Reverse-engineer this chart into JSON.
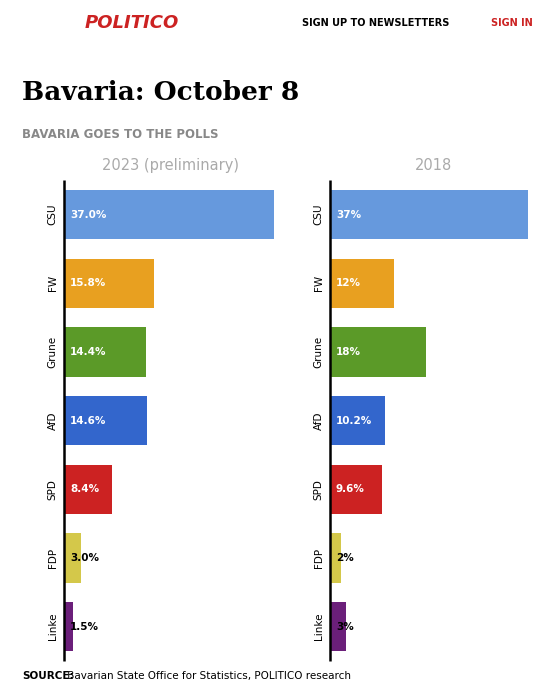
{
  "title": "Bavaria: October 8",
  "subtitle": "BAVARIA GOES TO THE POLLS",
  "col1_title": "2023 (preliminary)",
  "col2_title": "2018",
  "parties": [
    "CSU",
    "FW",
    "Grune",
    "AfD",
    "SPD",
    "FDP",
    "Linke"
  ],
  "values_2023": [
    37.0,
    15.8,
    14.4,
    14.6,
    8.4,
    3.0,
    1.5
  ],
  "labels_2023": [
    "37.0%",
    "15.8%",
    "14.4%",
    "14.6%",
    "8.4%",
    "3.0%",
    "1.5%"
  ],
  "values_2018": [
    37.0,
    12.0,
    18.0,
    10.2,
    9.6,
    2.0,
    3.0
  ],
  "labels_2018": [
    "37%",
    "12%",
    "18%",
    "10.2%",
    "9.6%",
    "2%",
    "3%"
  ],
  "colors": [
    "#6699DD",
    "#E8A020",
    "#5B9A28",
    "#3366CC",
    "#CC2222",
    "#D4C84A",
    "#6B1F7A"
  ],
  "source_bold": "SOURCE:",
  "source_rest": " Bavarian State Office for Statistics, POLITICO research",
  "header_bg": "#CC2222",
  "politico_red": "#CC2222",
  "max_val": 42
}
